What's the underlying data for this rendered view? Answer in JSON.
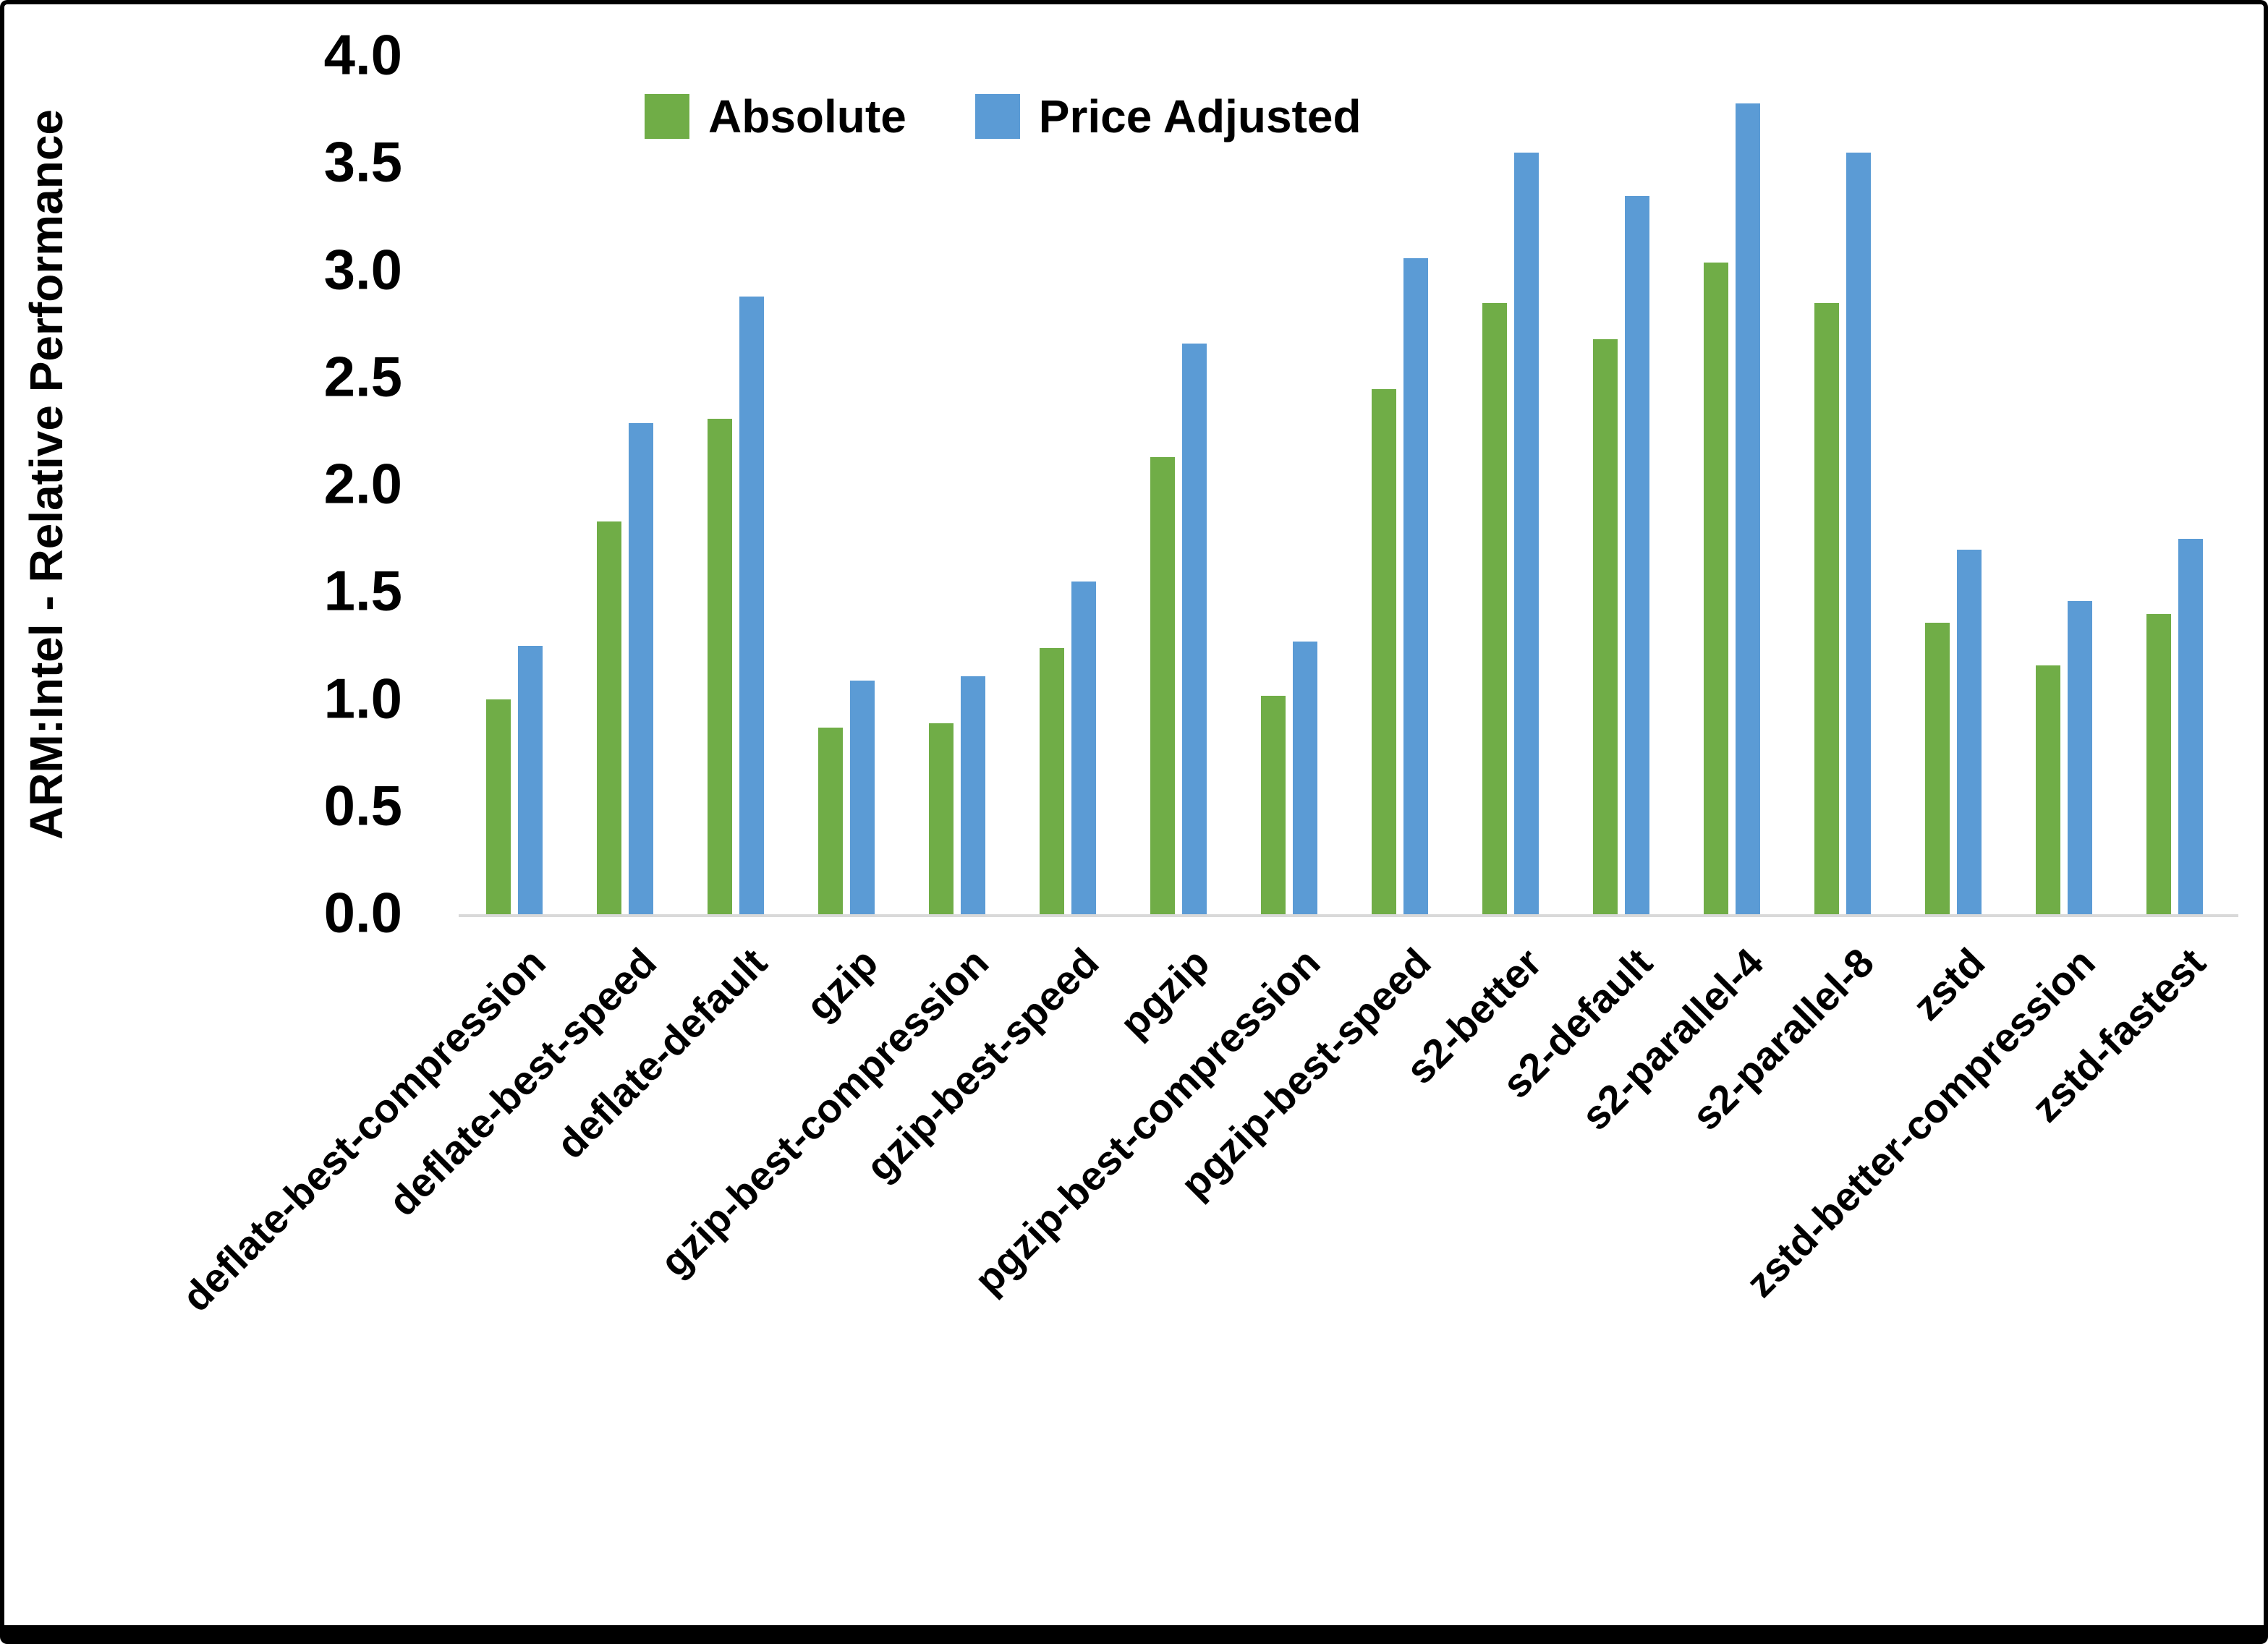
{
  "chart_data": {
    "type": "bar",
    "title": "",
    "xlabel": "",
    "ylabel": "ARM:Intel - Relative Performance",
    "ylim": [
      0.0,
      4.0
    ],
    "ytick_step": 0.5,
    "ytick_labels": [
      "0.0",
      "0.5",
      "1.0",
      "1.5",
      "2.0",
      "2.5",
      "3.0",
      "3.5",
      "4.0"
    ],
    "grid": false,
    "legend_position": "top-center",
    "axis_line_color": "#d9d9d9",
    "categories": [
      "deflate-best-compression",
      "deflate-best-speed",
      "deflate-default",
      "gzip",
      "gzip-best-compression",
      "gzip-best-speed",
      "pgzip",
      "pgzip-best-compression",
      "pgzip-best-speed",
      "s2-better",
      "s2-default",
      "s2-parallel-4",
      "s2-parallel-8",
      "zstd",
      "zstd-better-compression",
      "zstd-fastest"
    ],
    "series": [
      {
        "name": "Absolute",
        "color": "#70AD47",
        "values": [
          1.0,
          1.83,
          2.31,
          0.87,
          0.89,
          1.24,
          2.13,
          1.02,
          2.45,
          2.85,
          2.68,
          3.04,
          2.85,
          1.36,
          1.16,
          1.4
        ]
      },
      {
        "name": "Price Adjusted",
        "color": "#5B9BD5",
        "values": [
          1.25,
          2.29,
          2.88,
          1.09,
          1.11,
          1.55,
          2.66,
          1.27,
          3.06,
          3.55,
          3.35,
          3.78,
          3.55,
          1.7,
          1.46,
          1.75
        ]
      }
    ]
  }
}
